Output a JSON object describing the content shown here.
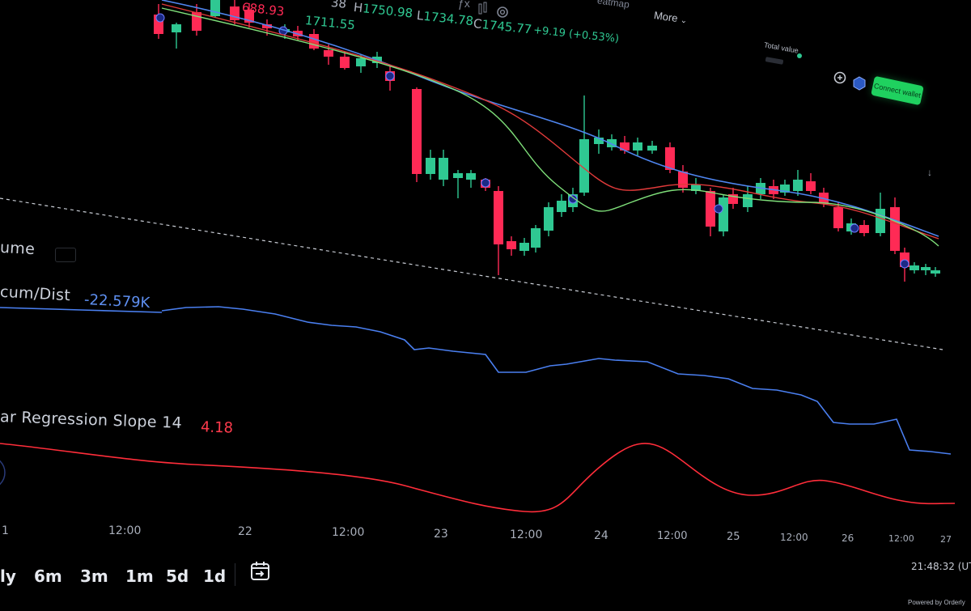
{
  "header": {
    "ohlc_partial_price": "688.93",
    "ohlc_partial_left": "38",
    "last_price": "1711.55",
    "high_label": "H",
    "high_value": "1750.98",
    "low_label": "L",
    "low_value": "1734.78",
    "close_label": "C",
    "close_value": "1745.77",
    "change": "+9.19 (+0.53%)"
  },
  "top_nav": {
    "heatmap_partial": "eatmap",
    "more_label": "More"
  },
  "wallet": {
    "total_value_label": "Total value",
    "connect_label": "Connect wallet"
  },
  "indicators": {
    "volume_label": "ume",
    "accum_label": "cum/Dist",
    "accum_value": "-22.579K",
    "regression_label": "ar Regression Slope 14",
    "regression_value": "4.18"
  },
  "time_axis": {
    "ticks": [
      "1",
      "12:00",
      "22",
      "12:00",
      "23",
      "12:00",
      "24",
      "12:00",
      "25",
      "12:00",
      "26",
      "12:00",
      "27"
    ]
  },
  "timeframes": [
    "ly",
    "6m",
    "3m",
    "1m",
    "5d",
    "1d"
  ],
  "footer": {
    "clock": "21:48:32 (UTC",
    "powered": "Powered by Orderly"
  },
  "colors": {
    "up": "#2fc892",
    "down": "#ff2a55",
    "ma_blue": "#4f86f0",
    "ma_red": "#e03a3a",
    "ma_green": "#7fe07a",
    "accum_line": "#4a7ff0",
    "regression_line": "#ff2d3a",
    "connect_button": "#1fd15f"
  },
  "icons": [
    "calendar-arrow-icon",
    "gear-icon",
    "candles-icon",
    "function-icon",
    "chevron-down-icon",
    "cloud-icon",
    "chain-icon",
    "download-arrow-icon"
  ]
}
